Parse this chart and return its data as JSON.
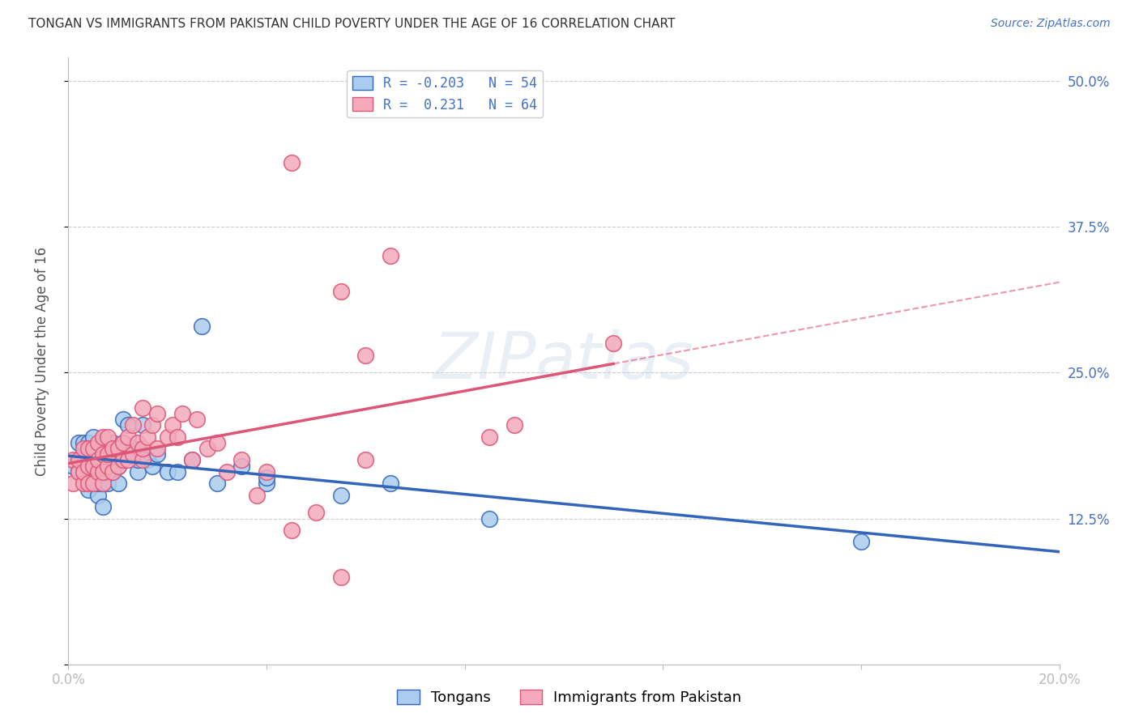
{
  "title": "TONGAN VS IMMIGRANTS FROM PAKISTAN CHILD POVERTY UNDER THE AGE OF 16 CORRELATION CHART",
  "source": "Source: ZipAtlas.com",
  "ylabel": "Child Poverty Under the Age of 16",
  "xlim": [
    0.0,
    0.2
  ],
  "ylim": [
    0.0,
    0.52
  ],
  "yticks": [
    0.0,
    0.125,
    0.25,
    0.375,
    0.5
  ],
  "ytick_labels": [
    "",
    "12.5%",
    "25.0%",
    "37.5%",
    "50.0%"
  ],
  "xticks": [
    0.0,
    0.04,
    0.08,
    0.12,
    0.16,
    0.2
  ],
  "xtick_labels": [
    "0.0%",
    "",
    "",
    "",
    "",
    "20.0%"
  ],
  "legend_label_tongans": "Tongans",
  "legend_label_pakistan": "Immigrants from Pakistan",
  "tongans_color": "#aaccee",
  "pakistan_color": "#f4aabb",
  "tongans_line_color": "#3366bb",
  "pakistan_line_color": "#dd5577",
  "background_color": "#ffffff",
  "grid_color": "#cccccc",
  "tongans_x": [
    0.001,
    0.002,
    0.002,
    0.003,
    0.003,
    0.003,
    0.004,
    0.004,
    0.004,
    0.005,
    0.005,
    0.005,
    0.005,
    0.006,
    0.006,
    0.006,
    0.006,
    0.007,
    0.007,
    0.007,
    0.007,
    0.008,
    0.008,
    0.008,
    0.009,
    0.009,
    0.009,
    0.01,
    0.01,
    0.01,
    0.011,
    0.011,
    0.012,
    0.012,
    0.013,
    0.014,
    0.014,
    0.015,
    0.015,
    0.016,
    0.017,
    0.018,
    0.02,
    0.022,
    0.025,
    0.027,
    0.03,
    0.035,
    0.04,
    0.04,
    0.055,
    0.065,
    0.085,
    0.16
  ],
  "tongans_y": [
    0.17,
    0.165,
    0.19,
    0.165,
    0.18,
    0.19,
    0.15,
    0.165,
    0.19,
    0.155,
    0.165,
    0.175,
    0.195,
    0.145,
    0.155,
    0.17,
    0.18,
    0.135,
    0.155,
    0.165,
    0.175,
    0.155,
    0.165,
    0.175,
    0.165,
    0.175,
    0.19,
    0.155,
    0.17,
    0.185,
    0.19,
    0.21,
    0.18,
    0.205,
    0.185,
    0.165,
    0.175,
    0.18,
    0.205,
    0.175,
    0.17,
    0.18,
    0.165,
    0.165,
    0.175,
    0.29,
    0.155,
    0.17,
    0.155,
    0.16,
    0.145,
    0.155,
    0.125,
    0.105
  ],
  "pakistan_x": [
    0.001,
    0.001,
    0.002,
    0.002,
    0.003,
    0.003,
    0.003,
    0.004,
    0.004,
    0.004,
    0.005,
    0.005,
    0.005,
    0.006,
    0.006,
    0.006,
    0.007,
    0.007,
    0.007,
    0.007,
    0.008,
    0.008,
    0.008,
    0.009,
    0.009,
    0.01,
    0.01,
    0.011,
    0.011,
    0.012,
    0.012,
    0.013,
    0.013,
    0.014,
    0.015,
    0.015,
    0.015,
    0.016,
    0.017,
    0.018,
    0.018,
    0.02,
    0.021,
    0.022,
    0.023,
    0.025,
    0.026,
    0.028,
    0.03,
    0.032,
    0.035,
    0.038,
    0.04,
    0.045,
    0.05,
    0.055,
    0.06,
    0.065,
    0.09,
    0.11,
    0.045,
    0.06,
    0.085,
    0.055
  ],
  "pakistan_y": [
    0.155,
    0.175,
    0.165,
    0.175,
    0.155,
    0.165,
    0.185,
    0.155,
    0.17,
    0.185,
    0.155,
    0.17,
    0.185,
    0.165,
    0.175,
    0.19,
    0.155,
    0.165,
    0.18,
    0.195,
    0.17,
    0.18,
    0.195,
    0.165,
    0.185,
    0.17,
    0.185,
    0.175,
    0.19,
    0.175,
    0.195,
    0.18,
    0.205,
    0.19,
    0.175,
    0.185,
    0.22,
    0.195,
    0.205,
    0.185,
    0.215,
    0.195,
    0.205,
    0.195,
    0.215,
    0.175,
    0.21,
    0.185,
    0.19,
    0.165,
    0.175,
    0.145,
    0.165,
    0.115,
    0.13,
    0.075,
    0.175,
    0.35,
    0.205,
    0.275,
    0.43,
    0.265,
    0.195,
    0.32
  ]
}
